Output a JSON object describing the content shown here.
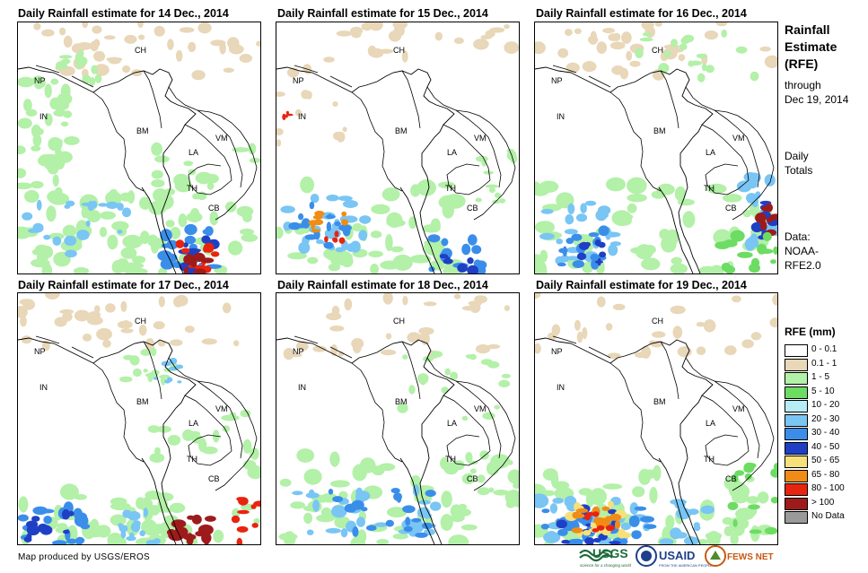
{
  "panels": [
    {
      "title": "Daily Rainfall estimate for 14 Dec., 2014"
    },
    {
      "title": "Daily Rainfall estimate for 15 Dec., 2014"
    },
    {
      "title": "Daily Rainfall estimate for 16 Dec., 2014"
    },
    {
      "title": "Daily Rainfall estimate for 17 Dec., 2014"
    },
    {
      "title": "Daily Rainfall estimate for 18 Dec., 2014"
    },
    {
      "title": "Daily Rainfall estimate for 19 Dec., 2014"
    }
  ],
  "country_labels": [
    "CH",
    "NP",
    "IN",
    "BM",
    "LA",
    "VM",
    "TH",
    "CB"
  ],
  "sidebar": {
    "heading_lines": [
      "Rainfall",
      "Estimate",
      "(RFE)"
    ],
    "through_lines": [
      "through",
      "Dec 19, 2014"
    ],
    "totals_lines": [
      "Daily",
      "Totals"
    ],
    "source_lines": [
      "Data:",
      "NOAA-",
      "RFE2.0"
    ]
  },
  "legend": {
    "title": "RFE (mm)",
    "items": [
      {
        "label": "0 - 0.1",
        "color": "#ffffff"
      },
      {
        "label": "0.1 - 1",
        "color": "#e8d7b8"
      },
      {
        "label": "1 - 5",
        "color": "#b3f0a8"
      },
      {
        "label": "5 - 10",
        "color": "#6ddc63"
      },
      {
        "label": "10 - 20",
        "color": "#b6ecf5"
      },
      {
        "label": "20 - 30",
        "color": "#79c5f4"
      },
      {
        "label": "30 - 40",
        "color": "#3a8eea"
      },
      {
        "label": "40 - 50",
        "color": "#1f3fc4"
      },
      {
        "label": "50 - 65",
        "color": "#f6e07a"
      },
      {
        "label": "65 - 80",
        "color": "#f08c16"
      },
      {
        "label": "80 - 100",
        "color": "#e8240f"
      },
      {
        "label": "> 100",
        "color": "#9e1b1b"
      },
      {
        "label": "No Data",
        "color": "#9a9a9a"
      }
    ]
  },
  "credit": "Map produced by USGS/EROS",
  "logos": {
    "usgs": "USGS",
    "usgs_tagline": "science for a changing world",
    "usaid": "USAID",
    "usaid_tagline": "FROM THE AMERICAN PEOPLE",
    "fewsnet": "FEWS NET"
  }
}
